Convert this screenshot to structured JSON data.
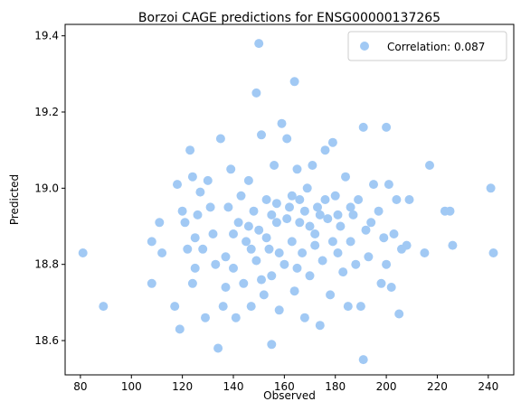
{
  "chart_data": {
    "type": "scatter",
    "title": "Borzoi CAGE predictions for ENSG00000137265",
    "xlabel": "Observed",
    "ylabel": "Predicted",
    "xlim": [
      74,
      250
    ],
    "ylim": [
      18.51,
      19.43
    ],
    "xticks": [
      80,
      100,
      120,
      140,
      160,
      180,
      200,
      220,
      240
    ],
    "yticks": [
      18.6,
      18.8,
      19.0,
      19.2,
      19.4
    ],
    "xtick_labels": [
      "80",
      "100",
      "120",
      "140",
      "160",
      "180",
      "200",
      "220",
      "240"
    ],
    "ytick_labels": [
      "18.6",
      "18.8",
      "19.0",
      "19.2",
      "19.4"
    ],
    "grid": false,
    "legend": {
      "position": "top-right",
      "entries": [
        "Correlation: 0.087"
      ]
    },
    "point_color": "#a1c9f4",
    "series": [
      {
        "name": "Correlation: 0.087",
        "points": [
          [
            81,
            18.83
          ],
          [
            89,
            18.69
          ],
          [
            108,
            18.86
          ],
          [
            108,
            18.75
          ],
          [
            111,
            18.91
          ],
          [
            112,
            18.83
          ],
          [
            117,
            18.69
          ],
          [
            118,
            19.01
          ],
          [
            119,
            18.63
          ],
          [
            120,
            18.94
          ],
          [
            121,
            18.91
          ],
          [
            122,
            18.84
          ],
          [
            123,
            19.1
          ],
          [
            124,
            19.03
          ],
          [
            124,
            18.75
          ],
          [
            125,
            18.79
          ],
          [
            125,
            18.87
          ],
          [
            126,
            18.93
          ],
          [
            127,
            18.99
          ],
          [
            128,
            18.84
          ],
          [
            129,
            18.66
          ],
          [
            130,
            19.02
          ],
          [
            131,
            18.95
          ],
          [
            132,
            18.88
          ],
          [
            133,
            18.8
          ],
          [
            134,
            18.58
          ],
          [
            135,
            19.13
          ],
          [
            136,
            18.69
          ],
          [
            137,
            18.74
          ],
          [
            137,
            18.82
          ],
          [
            138,
            18.95
          ],
          [
            139,
            19.05
          ],
          [
            140,
            18.79
          ],
          [
            141,
            18.66
          ],
          [
            142,
            18.91
          ],
          [
            143,
            18.98
          ],
          [
            144,
            18.75
          ],
          [
            145,
            18.86
          ],
          [
            146,
            19.02
          ],
          [
            147,
            18.69
          ],
          [
            148,
            18.94
          ],
          [
            149,
            19.25
          ],
          [
            149,
            18.81
          ],
          [
            150,
            19.38
          ],
          [
            150,
            18.89
          ],
          [
            151,
            19.14
          ],
          [
            152,
            18.72
          ],
          [
            153,
            18.97
          ],
          [
            154,
            18.84
          ],
          [
            155,
            18.59
          ],
          [
            155,
            18.77
          ],
          [
            156,
            19.06
          ],
          [
            157,
            18.91
          ],
          [
            158,
            18.68
          ],
          [
            159,
            19.17
          ],
          [
            160,
            18.8
          ],
          [
            161,
            19.13
          ],
          [
            162,
            18.95
          ],
          [
            163,
            18.86
          ],
          [
            164,
            19.28
          ],
          [
            164,
            18.73
          ],
          [
            165,
            19.05
          ],
          [
            166,
            18.91
          ],
          [
            167,
            18.83
          ],
          [
            168,
            18.66
          ],
          [
            169,
            19.0
          ],
          [
            170,
            18.77
          ],
          [
            171,
            19.06
          ],
          [
            172,
            18.88
          ],
          [
            173,
            18.95
          ],
          [
            174,
            18.64
          ],
          [
            175,
            18.81
          ],
          [
            176,
            19.1
          ],
          [
            177,
            18.92
          ],
          [
            178,
            18.72
          ],
          [
            179,
            19.12
          ],
          [
            180,
            18.98
          ],
          [
            181,
            18.83
          ],
          [
            182,
            18.9
          ],
          [
            183,
            18.78
          ],
          [
            184,
            19.03
          ],
          [
            185,
            18.69
          ],
          [
            186,
            18.86
          ],
          [
            187,
            18.93
          ],
          [
            188,
            18.8
          ],
          [
            189,
            18.97
          ],
          [
            190,
            18.69
          ],
          [
            191,
            19.16
          ],
          [
            191,
            18.55
          ],
          [
            192,
            18.89
          ],
          [
            193,
            18.82
          ],
          [
            194,
            18.91
          ],
          [
            195,
            19.01
          ],
          [
            197,
            18.94
          ],
          [
            198,
            18.75
          ],
          [
            199,
            18.87
          ],
          [
            200,
            19.16
          ],
          [
            200,
            18.8
          ],
          [
            201,
            19.01
          ],
          [
            202,
            18.74
          ],
          [
            203,
            18.88
          ],
          [
            204,
            18.97
          ],
          [
            205,
            18.67
          ],
          [
            206,
            18.84
          ],
          [
            208,
            18.85
          ],
          [
            209,
            18.97
          ],
          [
            215,
            18.83
          ],
          [
            217,
            19.06
          ],
          [
            223,
            18.94
          ],
          [
            225,
            18.94
          ],
          [
            226,
            18.85
          ],
          [
            241,
            19.0
          ],
          [
            242,
            18.83
          ],
          [
            146,
            18.9
          ],
          [
            153,
            18.87
          ],
          [
            157,
            18.96
          ],
          [
            161,
            18.92
          ],
          [
            165,
            18.79
          ],
          [
            168,
            18.94
          ],
          [
            172,
            18.85
          ],
          [
            176,
            18.97
          ],
          [
            179,
            18.86
          ],
          [
            158,
            18.83
          ],
          [
            147,
            18.84
          ],
          [
            170,
            18.9
          ],
          [
            163,
            18.98
          ],
          [
            155,
            18.93
          ],
          [
            174,
            18.93
          ],
          [
            140,
            18.88
          ],
          [
            186,
            18.95
          ],
          [
            151,
            18.76
          ],
          [
            166,
            18.97
          ],
          [
            181,
            18.93
          ]
        ]
      }
    ]
  }
}
